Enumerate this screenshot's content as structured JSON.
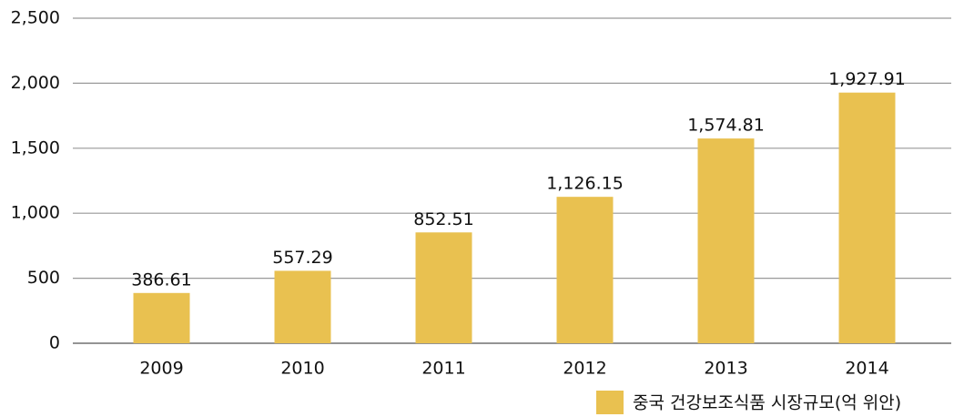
{
  "chart_data": {
    "type": "bar",
    "categories": [
      "2009",
      "2010",
      "2011",
      "2012",
      "2013",
      "2014"
    ],
    "series": [
      {
        "name": "중국 건강보조식품 시장규모(억 위안)",
        "color": "#e9c150",
        "values": [
          386.61,
          557.29,
          852.51,
          1126.15,
          1574.81,
          1927.91
        ],
        "value_labels": [
          "386.61",
          "557.29",
          "852.51",
          "1,126.15",
          "1,574.81",
          "1,927.91"
        ]
      }
    ],
    "ylim": [
      0,
      2500
    ],
    "yticks": [
      0,
      500,
      {
        "value": 1000,
        "label": "1,000"
      },
      {
        "value": 1500,
        "label": "1,500"
      },
      {
        "value": 2000,
        "label": "2,000"
      },
      {
        "value": 2500,
        "label": "2,500"
      }
    ],
    "grid": true,
    "legend": "lower right"
  }
}
